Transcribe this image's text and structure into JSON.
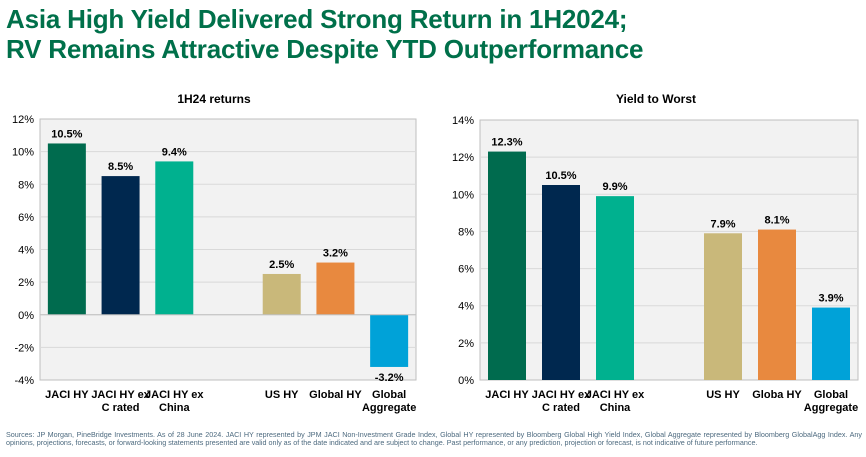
{
  "title_line1": "Asia High Yield Delivered Strong Return in 1H2024;",
  "title_line2": "RV Remains Attractive Despite YTD Outperformance",
  "chart_data": [
    {
      "type": "bar",
      "title": "1H24 returns",
      "categories": [
        [
          "JACI HY"
        ],
        [
          "JACI HY ex",
          "C rated"
        ],
        [
          "JACI HY ex",
          "China"
        ],
        [
          "US HY"
        ],
        [
          "Global HY"
        ],
        [
          "Global",
          "Aggregate"
        ]
      ],
      "values": [
        10.5,
        8.5,
        9.4,
        2.5,
        3.2,
        -3.2
      ],
      "value_labels": [
        "10.5%",
        "8.5%",
        "9.4%",
        "2.5%",
        "3.2%",
        "-3.2%"
      ],
      "colors": [
        "#006b4e",
        "#00284f",
        "#00b18f",
        "#c9b87a",
        "#e8893f",
        "#00a2d8"
      ],
      "ylim": [
        -4,
        12
      ],
      "ytick_values": [
        -4,
        -2,
        0,
        2,
        4,
        6,
        8,
        10,
        12
      ],
      "ytick_labels": [
        "-4%",
        "-2%",
        "0%",
        "2%",
        "4%",
        "6%",
        "8%",
        "10%",
        "12%"
      ],
      "groups": [
        [
          0,
          1,
          2
        ],
        [
          3,
          4,
          5
        ]
      ],
      "grid": true
    },
    {
      "type": "bar",
      "title": "Yield to Worst",
      "categories": [
        [
          "JACI HY"
        ],
        [
          "JACI HY ex",
          "C rated"
        ],
        [
          "JACI HY ex",
          "China"
        ],
        [
          "US HY"
        ],
        [
          "Globa HY"
        ],
        [
          "Global",
          "Aggregate"
        ]
      ],
      "values": [
        12.3,
        10.5,
        9.9,
        7.9,
        8.1,
        3.9
      ],
      "value_labels": [
        "12.3%",
        "10.5%",
        "9.9%",
        "7.9%",
        "8.1%",
        "3.9%"
      ],
      "colors": [
        "#006b4e",
        "#00284f",
        "#00b18f",
        "#c9b87a",
        "#e8893f",
        "#00a2d8"
      ],
      "ylim": [
        0,
        14
      ],
      "ytick_values": [
        0,
        2,
        4,
        6,
        8,
        10,
        12,
        14
      ],
      "ytick_labels": [
        "0%",
        "2%",
        "4%",
        "6%",
        "8%",
        "10%",
        "12%",
        "14%"
      ],
      "groups": [
        [
          0,
          1,
          2
        ],
        [
          3,
          4,
          5
        ]
      ],
      "grid": true
    }
  ],
  "footnote": "Sources: JP Morgan, PineBridge Investments. As of 28 June 2024. JACI HY represented by JPM JACI Non-Investment Grade Index, Global HY represented by Bloomberg Global High Yield Index, Global Aggregate represented by Bloomberg GlobalAgg Index. Any opinions, projections, forecasts, or forward-looking statements presented are valid only as of the date indicated and are subject to change. Past performance, or any prediction, projection or forecast, is not indicative of future performance."
}
